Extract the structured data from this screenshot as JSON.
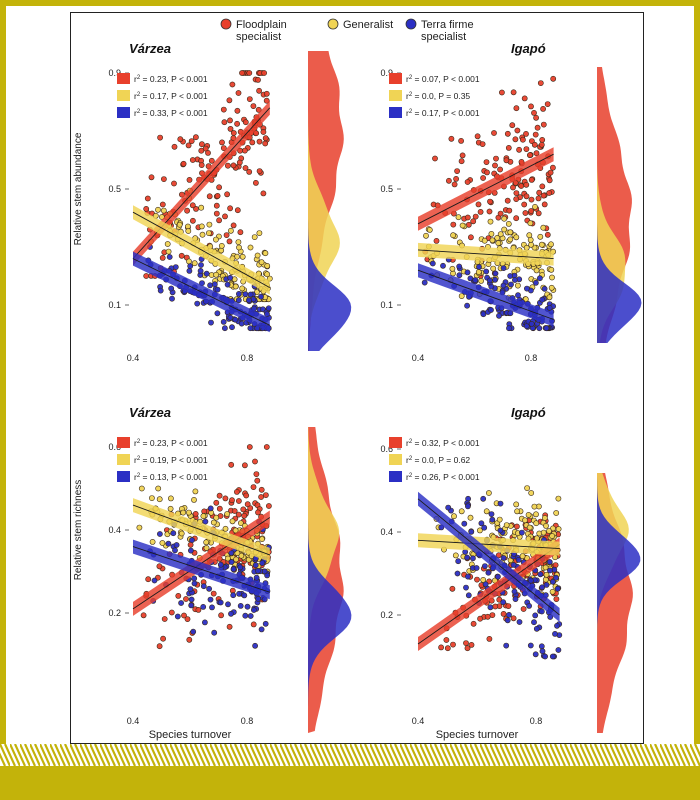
{
  "colors": {
    "floodplain": "#e8402c",
    "generalist": "#f0d455",
    "terra_firme": "#2b2fc4",
    "frame": "#c3b30a"
  },
  "legend": [
    {
      "key": "floodplain",
      "label_line1": "Floodplain",
      "label_line2": "specialist"
    },
    {
      "key": "generalist",
      "label_line1": "Generalist",
      "label_line2": ""
    },
    {
      "key": "terra_firme",
      "label_line1": "Terra firme",
      "label_line2": "specialist"
    }
  ],
  "chart_data": [
    {
      "type": "scatter",
      "id": "varzea-abundance",
      "title": "Várzea",
      "ylabel": "Relative stem abundance",
      "xlabel": "",
      "x_ticks": [
        "0.4",
        "0.8"
      ],
      "y_ticks": [
        "0.9",
        "0.5",
        "0.1"
      ],
      "xlim": [
        0.4,
        0.8
      ],
      "ylim": [
        0.1,
        0.9
      ],
      "stats": [
        {
          "key": "floodplain",
          "r2": "0.23",
          "p": "P < 0.001"
        },
        {
          "key": "generalist",
          "r2": "0.17",
          "p": "P < 0.001"
        },
        {
          "key": "terra_firme",
          "r2": "0.33",
          "p": "P < 0.001"
        }
      ],
      "series": [
        {
          "key": "floodplain",
          "fit": [
            [
              0.4,
              0.26
            ],
            [
              0.88,
              0.78
            ]
          ],
          "cloud": {
            "x": [
              0.4,
              0.88
            ],
            "y": [
              0.2,
              0.9
            ],
            "n": 160
          },
          "density_peak": 0.7
        },
        {
          "key": "generalist",
          "fit": [
            [
              0.4,
              0.42
            ],
            [
              0.88,
              0.16
            ]
          ],
          "cloud": {
            "x": [
              0.42,
              0.88
            ],
            "y": [
              0.12,
              0.5
            ],
            "n": 150
          },
          "density_peak": 0.32
        },
        {
          "key": "terra_firme",
          "fit": [
            [
              0.4,
              0.26
            ],
            [
              0.88,
              0.03
            ]
          ],
          "cloud": {
            "x": [
              0.42,
              0.88
            ],
            "y": [
              0.02,
              0.3
            ],
            "n": 140
          },
          "density_peak": 0.08
        }
      ]
    },
    {
      "type": "scatter",
      "id": "igapo-abundance",
      "title": "Igapó",
      "ylabel": "",
      "xlabel": "",
      "x_ticks": [
        "0.4",
        "0.8"
      ],
      "y_ticks": [
        "0.9",
        "0.5",
        "0.1"
      ],
      "xlim": [
        0.4,
        0.8
      ],
      "ylim": [
        0.1,
        0.9
      ],
      "stats": [
        {
          "key": "floodplain",
          "r2": "0.07",
          "p": "P < 0.001"
        },
        {
          "key": "generalist",
          "r2": "0.0",
          "p": "P = 0.35"
        },
        {
          "key": "terra_firme",
          "r2": "0.17",
          "p": "P < 0.001"
        }
      ],
      "series": [
        {
          "key": "floodplain",
          "fit": [
            [
              0.4,
              0.38
            ],
            [
              0.88,
              0.62
            ]
          ],
          "cloud": {
            "x": [
              0.4,
              0.88
            ],
            "y": [
              0.2,
              0.88
            ],
            "n": 150
          },
          "density_peak": 0.4
        },
        {
          "key": "generalist",
          "fit": [
            [
              0.4,
              0.29
            ],
            [
              0.88,
              0.26
            ]
          ],
          "cloud": {
            "x": [
              0.4,
              0.88
            ],
            "y": [
              0.12,
              0.5
            ],
            "n": 140
          },
          "density_peak": 0.22
        },
        {
          "key": "terra_firme",
          "fit": [
            [
              0.4,
              0.22
            ],
            [
              0.88,
              0.05
            ]
          ],
          "cloud": {
            "x": [
              0.4,
              0.88
            ],
            "y": [
              0.02,
              0.3
            ],
            "n": 120
          },
          "density_peak": 0.1
        }
      ]
    },
    {
      "type": "scatter",
      "id": "varzea-richness",
      "title": "Várzea",
      "ylabel": "Relative stem richness",
      "xlabel": "Species turnover",
      "x_ticks": [
        "0.4",
        "0.8"
      ],
      "y_ticks": [
        "0.6",
        "0.4",
        "0.2"
      ],
      "xlim": [
        0.4,
        0.8
      ],
      "ylim": [
        0.2,
        0.6
      ],
      "stats": [
        {
          "key": "floodplain",
          "r2": "0.23",
          "p": "P < 0.001"
        },
        {
          "key": "generalist",
          "r2": "0.19",
          "p": "P < 0.001"
        },
        {
          "key": "terra_firme",
          "r2": "0.13",
          "p": "P < 0.001"
        }
      ],
      "series": [
        {
          "key": "floodplain",
          "fit": [
            [
              0.4,
              0.21
            ],
            [
              0.88,
              0.43
            ]
          ],
          "cloud": {
            "x": [
              0.42,
              0.88
            ],
            "y": [
              0.12,
              0.6
            ],
            "n": 150
          },
          "density_peak": 0.28
        },
        {
          "key": "generalist",
          "fit": [
            [
              0.4,
              0.46
            ],
            [
              0.88,
              0.34
            ]
          ],
          "cloud": {
            "x": [
              0.4,
              0.88
            ],
            "y": [
              0.3,
              0.5
            ],
            "n": 150
          },
          "density_peak": 0.38
        },
        {
          "key": "terra_firme",
          "fit": [
            [
              0.4,
              0.36
            ],
            [
              0.88,
              0.25
            ]
          ],
          "cloud": {
            "x": [
              0.42,
              0.88
            ],
            "y": [
              0.08,
              0.46
            ],
            "n": 130
          },
          "density_peak": 0.2
        }
      ]
    },
    {
      "type": "scatter",
      "id": "igapo-richness",
      "title": "Igapó",
      "ylabel": "",
      "xlabel": "Species turnover",
      "x_ticks": [
        "0.4",
        "0.8"
      ],
      "y_ticks": [
        "0.6",
        "0.4",
        "0.2"
      ],
      "xlim": [
        0.4,
        0.8
      ],
      "ylim": [
        0.2,
        0.6
      ],
      "stats": [
        {
          "key": "floodplain",
          "r2": "0.32",
          "p": "P < 0.001"
        },
        {
          "key": "generalist",
          "r2": "0.0",
          "p": "P = 0.62"
        },
        {
          "key": "terra_firme",
          "r2": "0.26",
          "p": "P < 0.001"
        }
      ],
      "series": [
        {
          "key": "floodplain",
          "fit": [
            [
              0.4,
              0.13
            ],
            [
              0.88,
              0.37
            ]
          ],
          "cloud": {
            "x": [
              0.45,
              0.88
            ],
            "y": [
              0.12,
              0.48
            ],
            "n": 140
          },
          "density_peak": 0.24
        },
        {
          "key": "generalist",
          "fit": [
            [
              0.4,
              0.38
            ],
            [
              0.88,
              0.36
            ]
          ],
          "cloud": {
            "x": [
              0.45,
              0.88
            ],
            "y": [
              0.25,
              0.55
            ],
            "n": 150
          },
          "density_peak": 0.4
        },
        {
          "key": "terra_firme",
          "fit": [
            [
              0.4,
              0.48
            ],
            [
              0.88,
              0.2
            ]
          ],
          "cloud": {
            "x": [
              0.45,
              0.88
            ],
            "y": [
              0.1,
              0.48
            ],
            "n": 130
          },
          "density_peak": 0.34
        }
      ]
    }
  ]
}
